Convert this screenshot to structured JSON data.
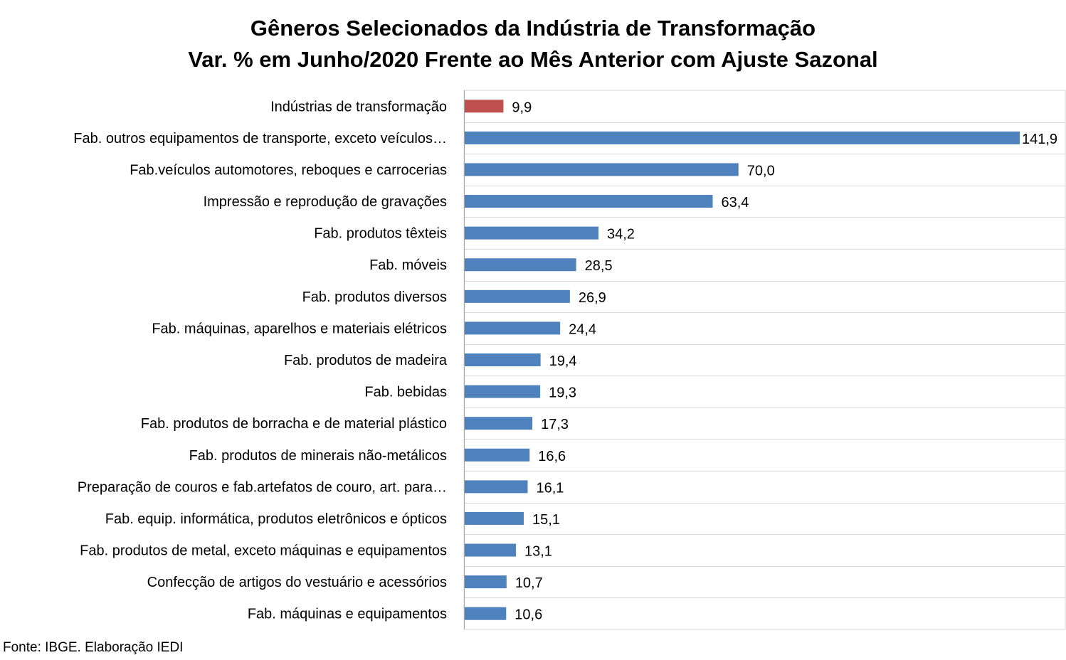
{
  "title": {
    "line1": "Gêneros Selecionados da Indústria de Transformação",
    "line2": "Var. % em Junho/2020 Frente ao Mês Anterior com Ajuste Sazonal"
  },
  "source": "Fonte: IBGE. Elaboração IEDI",
  "colors": {
    "highlight": "#c0504d",
    "bar": "#4f81bd",
    "grid": "#d9d9d9",
    "axis": "#a6a6a6"
  },
  "chart_data": {
    "type": "bar",
    "orientation": "horizontal",
    "categories": [
      "Indústrias de transformação",
      "Fab. outros equipamentos de transporte, exceto veículos…",
      "Fab.veículos automotores, reboques e carrocerias",
      "Impressão e reprodução de gravações",
      "Fab. produtos têxteis",
      "Fab. móveis",
      "Fab. produtos diversos",
      "Fab. máquinas, aparelhos e materiais elétricos",
      "Fab. produtos de madeira",
      "Fab. bebidas",
      "Fab. produtos de borracha e de material plástico",
      "Fab. produtos de minerais não-metálicos",
      "Preparação de couros e fab.artefatos de couro, art. para…",
      "Fab. equip. informática, produtos eletrônicos e ópticos",
      "Fab. produtos de metal, exceto máquinas e equipamentos",
      "Confecção de artigos do vestuário e acessórios",
      "Fab. máquinas e equipamentos"
    ],
    "values": [
      9.9,
      141.9,
      70.0,
      63.4,
      34.2,
      28.5,
      26.9,
      24.4,
      19.4,
      19.3,
      17.3,
      16.6,
      16.1,
      15.1,
      13.1,
      10.7,
      10.6
    ],
    "labels": [
      "9,9",
      "141,9",
      "70,0",
      "63,4",
      "34,2",
      "28,5",
      "26,9",
      "24,4",
      "19,4",
      "19,3",
      "17,3",
      "16,6",
      "16,1",
      "15,1",
      "13,1",
      "10,7",
      "10,6"
    ],
    "highlight_index": 0,
    "xlim": [
      0,
      154
    ],
    "grid": true,
    "legend": false
  }
}
